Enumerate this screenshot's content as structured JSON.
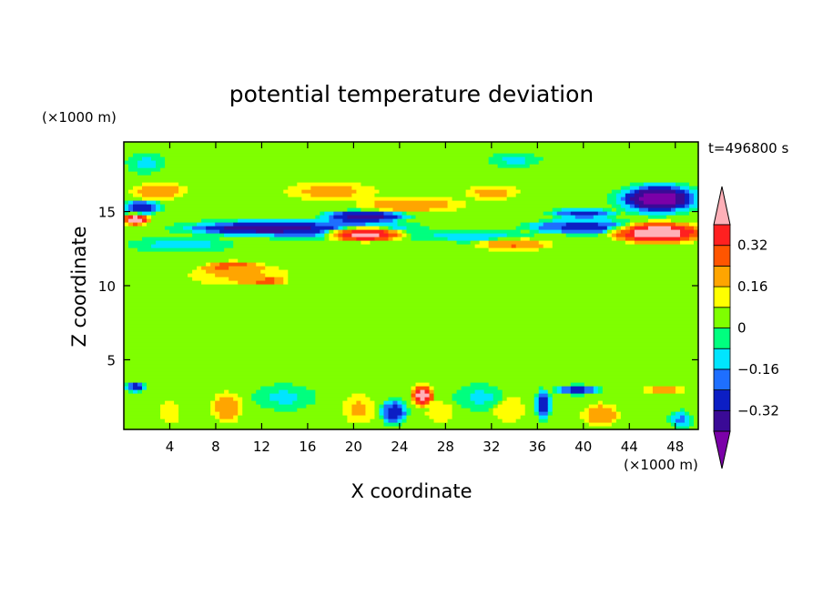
{
  "chart_data": {
    "type": "heatmap",
    "title": "potential temperature deviation",
    "xlabel": "X coordinate",
    "ylabel": "Z coordinate",
    "x_unit": "(×1000 m)",
    "y_unit": "(×1000 m)",
    "time_label": "t=496800 s",
    "xlim": [
      0,
      50
    ],
    "ylim": [
      0.3,
      19.7
    ],
    "x_ticks": [
      4,
      8,
      12,
      16,
      20,
      24,
      28,
      32,
      36,
      40,
      44,
      48
    ],
    "y_ticks": [
      5,
      10,
      15
    ],
    "colorbar": {
      "levels": [
        -0.4,
        -0.32,
        -0.24,
        -0.16,
        -0.08,
        0,
        0.08,
        0.16,
        0.24,
        0.32,
        0.4
      ],
      "labels": [
        "0.32",
        "0.16",
        "0",
        "−0.16",
        "−0.32"
      ],
      "label_values": [
        0.32,
        0.16,
        0,
        -0.16,
        -0.32
      ],
      "colors": [
        "#7b00a8",
        "#3a0a96",
        "#0c1ec4",
        "#1e6fff",
        "#00e5ff",
        "#00ff7f",
        "#7fff00",
        "#ffff00",
        "#ffa500",
        "#ff5500",
        "#ff2020",
        "#ffb0b8"
      ]
    },
    "background_value": 0.02,
    "features": [
      {
        "x": 38,
        "z": 17.8,
        "rx": 18,
        "rz": 1.6,
        "v": 0.06
      },
      {
        "x": 6,
        "z": 17.5,
        "rx": 4,
        "rz": 1.5,
        "v": 0.06
      },
      {
        "x": 25,
        "z": 15.5,
        "rx": 6,
        "rz": 0.7,
        "v": 0.22
      },
      {
        "x": 18,
        "z": 16.4,
        "rx": 5,
        "rz": 0.8,
        "v": 0.2
      },
      {
        "x": 32,
        "z": 16.3,
        "rx": 3,
        "rz": 0.6,
        "v": 0.2
      },
      {
        "x": 3,
        "z": 16.4,
        "rx": 3,
        "rz": 0.7,
        "v": 0.24
      },
      {
        "x": 46.5,
        "z": 15.9,
        "rx": 4.5,
        "rz": 1.3,
        "v": -0.3
      },
      {
        "x": 46.5,
        "z": 15.9,
        "rx": 3.2,
        "rz": 0.9,
        "v": -0.45
      },
      {
        "x": 15,
        "z": 13.9,
        "rx": 12,
        "rz": 0.75,
        "v": -0.28
      },
      {
        "x": 12,
        "z": 13.9,
        "rx": 6.5,
        "rz": 0.4,
        "v": -0.36
      },
      {
        "x": 21,
        "z": 14.7,
        "rx": 4.5,
        "rz": 0.5,
        "v": -0.38
      },
      {
        "x": 40,
        "z": 14.0,
        "rx": 6,
        "rz": 0.6,
        "v": -0.28
      },
      {
        "x": 40,
        "z": 14.9,
        "rx": 3.5,
        "rz": 0.4,
        "v": -0.28
      },
      {
        "x": 1.5,
        "z": 15.3,
        "rx": 2,
        "rz": 0.6,
        "v": -0.3
      },
      {
        "x": 5,
        "z": 12.8,
        "rx": 5,
        "rz": 0.6,
        "v": -0.12
      },
      {
        "x": 30,
        "z": 13.4,
        "rx": 6,
        "rz": 0.5,
        "v": -0.12
      },
      {
        "x": 34,
        "z": 18.5,
        "rx": 3,
        "rz": 0.6,
        "v": -0.1
      },
      {
        "x": 2,
        "z": 18.3,
        "rx": 2,
        "rz": 0.8,
        "v": -0.1
      },
      {
        "x": 21,
        "z": 13.5,
        "rx": 4,
        "rz": 0.6,
        "v": 0.45
      },
      {
        "x": 46.5,
        "z": 13.6,
        "rx": 5,
        "rz": 0.9,
        "v": 0.48
      },
      {
        "x": 1,
        "z": 14.5,
        "rx": 1.5,
        "rz": 0.5,
        "v": 0.45
      },
      {
        "x": 34,
        "z": 12.8,
        "rx": 4,
        "rz": 0.5,
        "v": 0.25
      },
      {
        "x": 9.5,
        "z": 11.2,
        "rx": 3,
        "rz": 0.55,
        "v": 0.48
      },
      {
        "x": 12,
        "z": 10.4,
        "rx": 2.5,
        "rz": 0.35,
        "v": 0.45
      },
      {
        "x": 10,
        "z": 10.8,
        "rx": 5.5,
        "rz": 1.0,
        "v": 0.18
      },
      {
        "x": 10,
        "z": 7.5,
        "rx": 10,
        "rz": 1.8,
        "v": 0.06
      },
      {
        "x": 43,
        "z": 7.0,
        "rx": 8,
        "rz": 2.5,
        "v": 0.06
      },
      {
        "x": 30,
        "z": 5.5,
        "rx": 8,
        "rz": 1.5,
        "v": 0.06
      },
      {
        "x": 9,
        "z": 1.8,
        "rx": 1.6,
        "rz": 1.3,
        "v": 0.24
      },
      {
        "x": 4,
        "z": 1.5,
        "rx": 1.2,
        "rz": 1.0,
        "v": 0.16
      },
      {
        "x": 20.5,
        "z": 1.7,
        "rx": 1.8,
        "rz": 1.3,
        "v": 0.18
      },
      {
        "x": 26,
        "z": 2.6,
        "rx": 1.2,
        "rz": 0.9,
        "v": 0.45
      },
      {
        "x": 27.5,
        "z": 1.5,
        "rx": 1.5,
        "rz": 0.9,
        "v": 0.16
      },
      {
        "x": 33.5,
        "z": 1.7,
        "rx": 1.8,
        "rz": 1.2,
        "v": 0.16
      },
      {
        "x": 41.5,
        "z": 1.3,
        "rx": 2.0,
        "rz": 1.0,
        "v": 0.24
      },
      {
        "x": 47,
        "z": 3.0,
        "rx": 2.5,
        "rz": 0.4,
        "v": 0.22
      },
      {
        "x": 23.5,
        "z": 1.5,
        "rx": 1.4,
        "rz": 1.0,
        "v": -0.3
      },
      {
        "x": 36.5,
        "z": 2.0,
        "rx": 0.8,
        "rz": 1.2,
        "v": -0.3
      },
      {
        "x": 39.5,
        "z": 3.0,
        "rx": 2.5,
        "rz": 0.4,
        "v": -0.3
      },
      {
        "x": 1,
        "z": 3.2,
        "rx": 1,
        "rz": 0.4,
        "v": -0.3
      },
      {
        "x": 48.5,
        "z": 1.0,
        "rx": 1.2,
        "rz": 0.7,
        "v": -0.18
      },
      {
        "x": 14,
        "z": 2.5,
        "rx": 3,
        "rz": 1.0,
        "v": -0.1
      },
      {
        "x": 31,
        "z": 2.5,
        "rx": 2.5,
        "rz": 1.0,
        "v": -0.1
      }
    ]
  }
}
